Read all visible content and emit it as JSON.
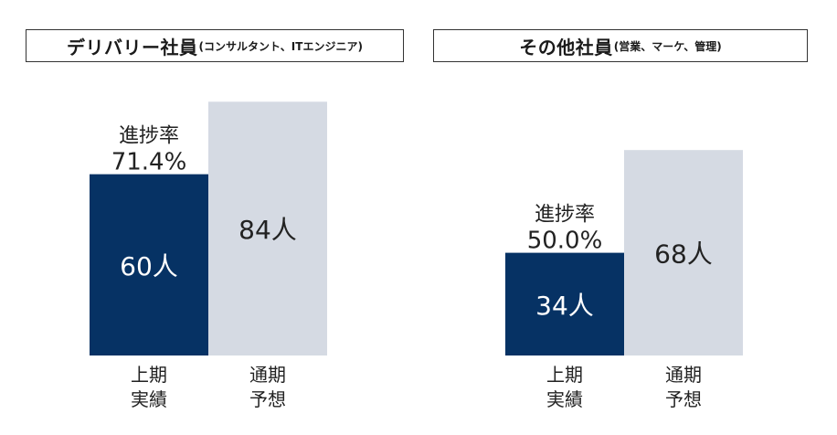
{
  "chart_data": [
    {
      "type": "bar",
      "title": "デリバリー社員",
      "subtitle": "(コンサルタント、ITエンジニア)",
      "categories": [
        "上期\n実績",
        "通期\n予想"
      ],
      "values": [
        60,
        84
      ],
      "value_labels": [
        "60人",
        "84人"
      ],
      "progress_label": "進捗率",
      "progress_value": "71.4%",
      "ylim": [
        0,
        84
      ],
      "colors": [
        "#063264",
        "#d5dae3"
      ],
      "grid": false
    },
    {
      "type": "bar",
      "title": "その他社員",
      "subtitle": "(営業、マーケ、管理)",
      "categories": [
        "上期\n実績",
        "通期\n予想"
      ],
      "values": [
        34,
        68
      ],
      "value_labels": [
        "34人",
        "68人"
      ],
      "progress_label": "進捗率",
      "progress_value": "50.0%",
      "ylim": [
        0,
        84
      ],
      "colors": [
        "#063264",
        "#d5dae3"
      ],
      "grid": false
    }
  ]
}
